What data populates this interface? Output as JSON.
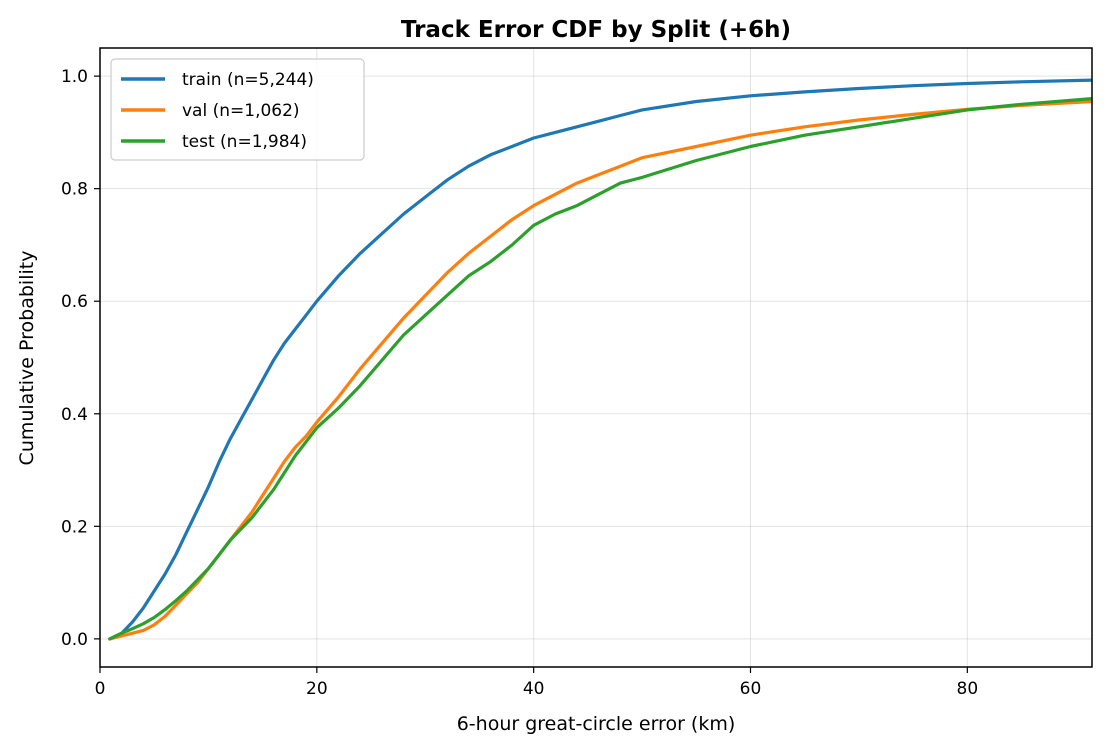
{
  "chart_data": {
    "type": "line",
    "title": "Track Error CDF by Split (+6h)",
    "xlabel": "6-hour great-circle error (km)",
    "ylabel": "Cumulative Probability",
    "xlim": [
      0,
      91.5
    ],
    "ylim": [
      -0.05,
      1.05
    ],
    "xticks": [
      0,
      20,
      40,
      60,
      80
    ],
    "yticks": [
      0.0,
      0.2,
      0.4,
      0.6,
      0.8,
      1.0
    ],
    "xtick_labels": [
      "0",
      "20",
      "40",
      "60",
      "80"
    ],
    "ytick_labels": [
      "0.0",
      "0.2",
      "0.4",
      "0.6",
      "0.8",
      "1.0"
    ],
    "grid": true,
    "legend_position": "top-left",
    "series": [
      {
        "name": "train (n=5,244)",
        "color": "#1f77b4",
        "x": [
          0.9,
          2,
          3,
          4,
          5,
          6,
          7,
          8,
          9,
          10,
          11,
          12,
          13,
          14,
          15,
          16,
          17,
          18,
          19,
          20,
          22,
          24,
          26,
          28,
          30,
          32,
          34,
          36,
          38,
          40,
          42,
          44,
          46,
          48,
          50,
          55,
          60,
          65,
          70,
          75,
          80,
          85,
          91.5
        ],
        "y": [
          0.0,
          0.01,
          0.03,
          0.055,
          0.085,
          0.115,
          0.15,
          0.19,
          0.23,
          0.27,
          0.315,
          0.355,
          0.39,
          0.425,
          0.46,
          0.495,
          0.525,
          0.55,
          0.575,
          0.6,
          0.645,
          0.685,
          0.72,
          0.755,
          0.785,
          0.815,
          0.84,
          0.86,
          0.875,
          0.89,
          0.9,
          0.91,
          0.92,
          0.93,
          0.94,
          0.955,
          0.965,
          0.972,
          0.978,
          0.983,
          0.987,
          0.99,
          0.993
        ]
      },
      {
        "name": "val (n=1,062)",
        "color": "#ff7f0e",
        "x": [
          0.9,
          2,
          3,
          4,
          5,
          6,
          7,
          8,
          9,
          10,
          11,
          12,
          13,
          14,
          15,
          16,
          17,
          18,
          19,
          20,
          22,
          24,
          26,
          28,
          30,
          32,
          34,
          36,
          38,
          40,
          42,
          44,
          46,
          48,
          50,
          55,
          60,
          65,
          70,
          75,
          80,
          85,
          91.5
        ],
        "y": [
          0.0,
          0.005,
          0.01,
          0.015,
          0.025,
          0.04,
          0.06,
          0.08,
          0.1,
          0.125,
          0.15,
          0.175,
          0.2,
          0.225,
          0.255,
          0.285,
          0.315,
          0.34,
          0.36,
          0.385,
          0.43,
          0.48,
          0.525,
          0.57,
          0.61,
          0.65,
          0.685,
          0.715,
          0.745,
          0.77,
          0.79,
          0.81,
          0.825,
          0.84,
          0.855,
          0.875,
          0.895,
          0.91,
          0.922,
          0.932,
          0.941,
          0.948,
          0.955
        ]
      },
      {
        "name": "test (n=1,984)",
        "color": "#2ca02c",
        "x": [
          0.9,
          2,
          3,
          4,
          5,
          6,
          7,
          8,
          9,
          10,
          11,
          12,
          13,
          14,
          15,
          16,
          17,
          18,
          19,
          20,
          22,
          24,
          26,
          28,
          30,
          32,
          34,
          36,
          38,
          40,
          42,
          44,
          46,
          48,
          50,
          55,
          60,
          65,
          70,
          75,
          80,
          85,
          91.5
        ],
        "y": [
          0.0,
          0.01,
          0.018,
          0.027,
          0.038,
          0.052,
          0.068,
          0.085,
          0.105,
          0.125,
          0.15,
          0.175,
          0.195,
          0.215,
          0.24,
          0.265,
          0.295,
          0.325,
          0.35,
          0.375,
          0.41,
          0.45,
          0.495,
          0.54,
          0.575,
          0.61,
          0.645,
          0.67,
          0.7,
          0.735,
          0.755,
          0.77,
          0.79,
          0.81,
          0.82,
          0.85,
          0.875,
          0.895,
          0.91,
          0.925,
          0.94,
          0.95,
          0.96
        ]
      }
    ]
  }
}
